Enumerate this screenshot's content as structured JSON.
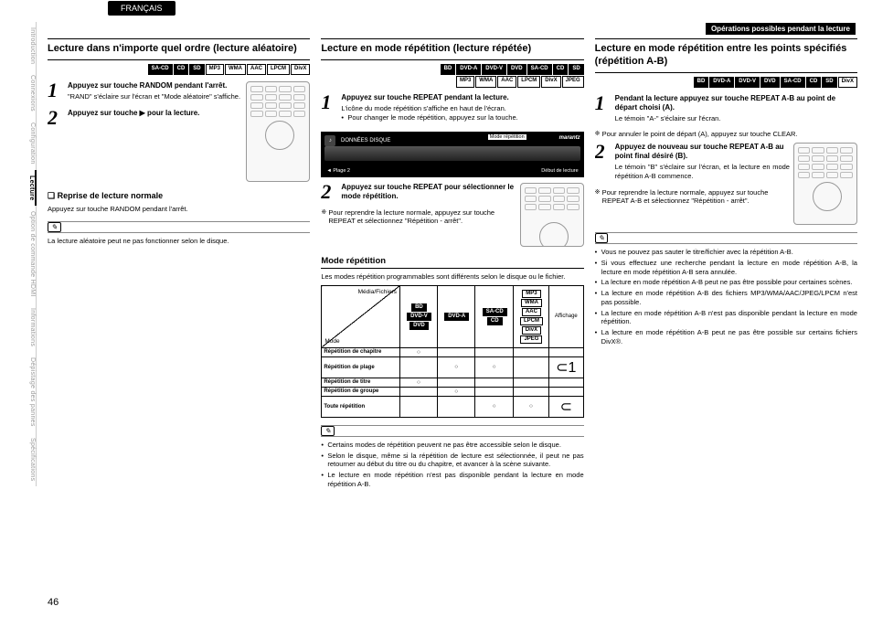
{
  "lang_tab": "FRANÇAIS",
  "header_bar": "Opérations possibles pendant la lecture",
  "page_number": "46",
  "sidebar": {
    "items": [
      {
        "label": "Introduction",
        "active": false
      },
      {
        "label": "Connexions",
        "active": false
      },
      {
        "label": "Configuration",
        "active": false
      },
      {
        "label": "Lecture",
        "active": true
      },
      {
        "label": "Option de commande HDMI",
        "active": false
      },
      {
        "label": "Informations",
        "active": false
      },
      {
        "label": "Dépistage des pannes",
        "active": false
      },
      {
        "label": "Spécifications",
        "active": false
      }
    ]
  },
  "col1": {
    "title": "Lecture dans n'importe quel ordre (lecture aléatoire)",
    "formats": [
      {
        "t": "SA-CD",
        "d": 1
      },
      {
        "t": "CD",
        "d": 1
      },
      {
        "t": "SD",
        "d": 1
      },
      {
        "t": "MP3",
        "d": 0
      },
      {
        "t": "WMA",
        "d": 0
      },
      {
        "t": "AAC",
        "d": 0
      },
      {
        "t": "LPCM",
        "d": 0
      },
      {
        "t": "DivX",
        "d": 0
      }
    ],
    "step1_head": "Appuyez sur touche RANDOM pendant l'arrêt.",
    "step1_text": "\"RAND\" s'éclaire sur l'écran et \"Mode aléatoire\" s'affiche.",
    "step2_head": "Appuyez sur touche ▶ pour la lecture.",
    "resume_title": "Reprise de lecture normale",
    "resume_text": "Appuyez sur touche RANDOM pendant l'arrêt.",
    "note": "La lecture aléatoire peut ne pas fonctionner selon le disque."
  },
  "col2": {
    "title": "Lecture en mode répétition (lecture répétée)",
    "formats_r1": [
      {
        "t": "BD",
        "d": 1
      },
      {
        "t": "DVD-A",
        "d": 1
      },
      {
        "t": "DVD-V",
        "d": 1
      },
      {
        "t": "DVD",
        "d": 1
      },
      {
        "t": "SA-CD",
        "d": 1
      },
      {
        "t": "CD",
        "d": 1
      },
      {
        "t": "SD",
        "d": 1
      }
    ],
    "formats_r2": [
      {
        "t": "MP3",
        "d": 0
      },
      {
        "t": "WMA",
        "d": 0
      },
      {
        "t": "AAC",
        "d": 0
      },
      {
        "t": "LPCM",
        "d": 0
      },
      {
        "t": "DivX",
        "d": 0
      },
      {
        "t": "JPEG",
        "d": 0
      }
    ],
    "step1_head": "Appuyez sur touche REPEAT pendant la lecture.",
    "step1_text": "L'icône du mode répétition s'affiche en haut de l'écran.",
    "step1_bullet": "Pour changer le mode répétition, appuyez sur la touche.",
    "display": {
      "data_label": "DONNÉES DISQUE",
      "mode_tag": "Mode répétition",
      "brand": "marantz",
      "track": "Plage 2",
      "start": "Début de lecture"
    },
    "step2_head": "Appuyez sur touche REPEAT pour sélectionner le mode répétition.",
    "step2_note": "Pour reprendre la lecture normale, appuyez sur touche REPEAT et sélectionnez \"Répétition - arrêt\".",
    "mode_title": "Mode répétition",
    "mode_intro": "Les modes répétition programmables sont différents selon le disque ou le fichier.",
    "table": {
      "diag_top": "Média/Fichiers",
      "diag_bottom": "Mode",
      "col_display": "Affichage",
      "cols": [
        [
          {
            "t": "BD",
            "d": 1
          },
          {
            "t": "DVD-V",
            "d": 1
          },
          {
            "t": "DVD",
            "d": 1
          }
        ],
        [
          {
            "t": "DVD-A",
            "d": 1
          }
        ],
        [
          {
            "t": "SA-CD",
            "d": 1
          },
          {
            "t": "CD",
            "d": 1
          }
        ],
        [
          {
            "t": "MP3",
            "d": 0
          },
          {
            "t": "WMA",
            "d": 0
          },
          {
            "t": "AAC",
            "d": 0
          },
          {
            "t": "LPCM",
            "d": 0
          },
          {
            "t": "DivX",
            "d": 0
          },
          {
            "t": "JPEG",
            "d": 0
          }
        ]
      ],
      "rows": [
        {
          "label": "Répétition de chapitre",
          "cells": [
            "○",
            "",
            "",
            "",
            ""
          ]
        },
        {
          "label": "Répétition de plage",
          "cells": [
            "",
            "○",
            "○",
            "",
            "⊂1"
          ]
        },
        {
          "label": "Répétition de titre",
          "cells": [
            "○",
            "",
            "",
            "",
            ""
          ]
        },
        {
          "label": "Répétition de groupe",
          "cells": [
            "",
            "○",
            "",
            "",
            ""
          ]
        },
        {
          "label": "Toute répétition",
          "cells": [
            "",
            "",
            "○",
            "○",
            "⊂"
          ]
        }
      ]
    },
    "notes": [
      "Certains modes de répétition peuvent ne pas être accessible selon le disque.",
      "Selon le disque, même si la répétition de lecture est sélectionnée, il peut ne pas retourner au début du titre ou du chapitre, et avancer à la scène suivante.",
      "Le lecture en mode répétition n'est pas disponible pendant la lecture en mode répétition A-B."
    ]
  },
  "col3": {
    "title": "Lecture en mode répétition entre les points spécifiés (répétition A-B)",
    "formats_r1": [
      {
        "t": "BD",
        "d": 1
      },
      {
        "t": "DVD-A",
        "d": 1
      },
      {
        "t": "DVD-V",
        "d": 1
      },
      {
        "t": "DVD",
        "d": 1
      },
      {
        "t": "SA-CD",
        "d": 1
      },
      {
        "t": "CD",
        "d": 1
      },
      {
        "t": "SD",
        "d": 1
      },
      {
        "t": "DivX",
        "d": 0
      }
    ],
    "step1_head": "Pendant la lecture appuyez sur touche REPEAT A-B au point de départ choisi (A).",
    "step1_text": "Le témoin \"A-\" s'éclaire sur l'écran.",
    "step1_star": "Pour annuler le point de départ (A), appuyez sur touche CLEAR.",
    "step2_head": "Appuyez de nouveau sur touche REPEAT A-B au point final désiré (B).",
    "step2_text": "Le témoin \"B\" s'éclaire sur l'écran, et la lecture en mode répétition A-B commence.",
    "step2_star": "Pour reprendre la lecture normale, appuyez sur touche REPEAT A-B et sélectionnez \"Répétition - arrêt\".",
    "notes": [
      "Vous ne pouvez pas sauter le titre/fichier avec la répétition A-B.",
      "Si vous effectuez une recherche pendant la lecture en mode répétition A-B, la lecture en mode répétition A-B sera annulée.",
      "La lecture en mode répétition A-B peut ne pas être possible pour certaines scènes.",
      "La lecture en mode répétition A-B des fichiers MP3/WMA/AAC/JPEG/LPCM n'est pas possible.",
      "La lecture en mode répétition A-B n'est pas disponible pendant la lecture en mode répétition.",
      "La lecture en mode répétition A-B peut ne pas être possible sur certains fichiers DivX®."
    ]
  }
}
